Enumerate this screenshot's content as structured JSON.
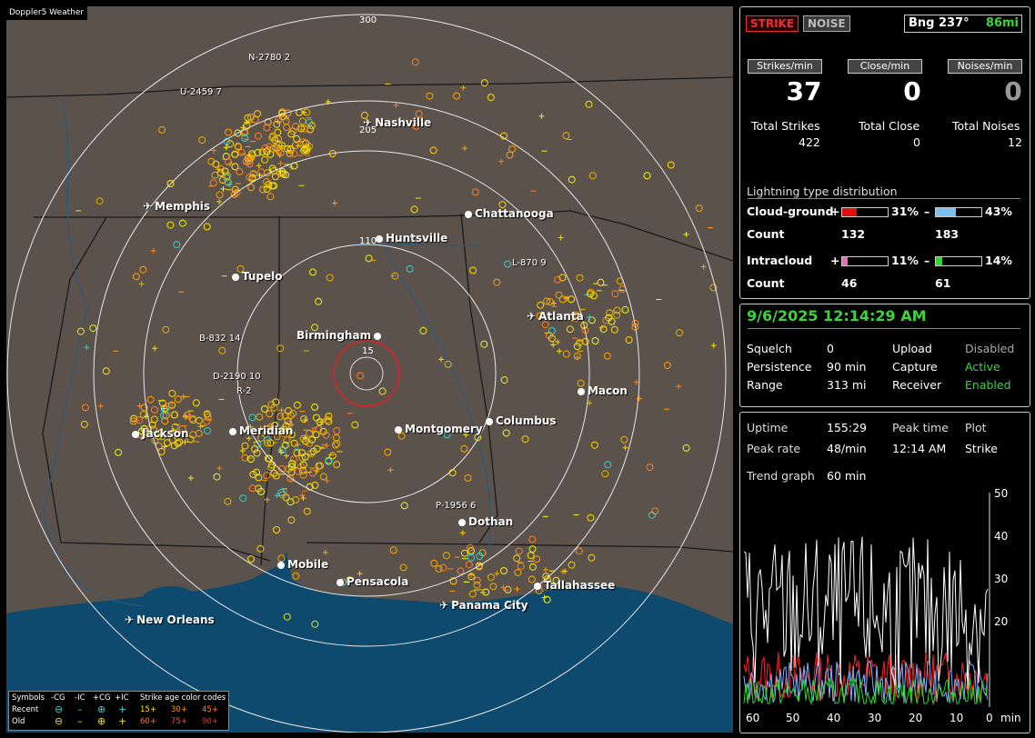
{
  "app_title": "Doppler5 Weather",
  "map": {
    "ring_labels": {
      "r300": "300",
      "r205": "205",
      "r110": "110",
      "r15": "15"
    },
    "cities": {
      "nashville": "Nashville",
      "memphis": "Memphis",
      "chattanooga": "Chattanooga",
      "huntsville": "Huntsville",
      "tupelo": "Tupelo",
      "birmingham": "Birmingham",
      "atlanta": "Atlanta",
      "macon": "Macon",
      "jackson": "Jackson",
      "meridian": "Meridian",
      "montgomery": "Montgomery",
      "columbus": "Columbus",
      "dothan": "Dothan",
      "mobile": "Mobile",
      "pensacola": "Pensacola",
      "tallahassee": "Tallahassee",
      "panama_city": "Panama City",
      "new_orleans": "New Orleans"
    },
    "cell_labels": {
      "n": "N-2780 2",
      "u": "U-2459 7",
      "l": "L-870 9",
      "b": "B-832 14",
      "d": "D-2190 10",
      "r": "R-2",
      "p": "P-1956 6"
    }
  },
  "legend": {
    "symbols": "Symbols",
    "neg_cg": "-CG",
    "neg_ic": "-IC",
    "pos_cg": "+CG",
    "pos_ic": "+IC",
    "age_title": "Strike age color codes",
    "recent": "Recent",
    "old": "Old",
    "age_recent": [
      "15+",
      "30+",
      "45+"
    ],
    "age_old": [
      "60+",
      "75+",
      "90+"
    ]
  },
  "panel_strike": {
    "strike_tab": "STRIKE",
    "noise_tab": "NOISE",
    "bearing": "Bng 237°",
    "distance": "86mi",
    "strikes_min_label": "Strikes/min",
    "close_min_label": "Close/min",
    "noises_min_label": "Noises/min",
    "strikes_min": "37",
    "close_min": "0",
    "noises_min": "0",
    "total_strikes_label": "Total Strikes",
    "total_close_label": "Total Close",
    "total_noises_label": "Total Noises",
    "total_strikes": "422",
    "total_close": "0",
    "total_noises": "12",
    "dist_title": "Lightning type distribution",
    "cg_label": "Cloud-ground",
    "ic_label": "Intracloud",
    "count_label": "Count",
    "plus": "+",
    "minus": "–",
    "cg_pos_pct": "31%",
    "cg_neg_pct": "43%",
    "ic_pos_pct": "11%",
    "ic_neg_pct": "14%",
    "cg_pos_count": "132",
    "cg_neg_count": "183",
    "ic_pos_count": "46",
    "ic_neg_count": "61",
    "cg_pos_frac": 0.31,
    "cg_neg_frac": 0.43,
    "ic_pos_frac": 0.11,
    "ic_neg_frac": 0.14
  },
  "panel_status": {
    "datetime": "9/6/2025 12:14:29 AM",
    "squelch_label": "Squelch",
    "squelch": "0",
    "persistence_label": "Persistence",
    "persistence": "90 min",
    "range_label": "Range",
    "range": "313 mi",
    "upload_label": "Upload",
    "upload": "Disabled",
    "capture_label": "Capture",
    "capture": "Active",
    "receiver_label": "Receiver",
    "receiver": "Enabled"
  },
  "panel_trend": {
    "uptime_label": "Uptime",
    "uptime": "155:29",
    "peak_time_label": "Peak time",
    "peak_time": "12:14 AM",
    "plot_label": "Plot",
    "plot": "Strike",
    "peak_rate_label": "Peak rate",
    "peak_rate": "48/min",
    "trend_label": "Trend graph",
    "trend": "60 min",
    "y_ticks": [
      "50",
      "40",
      "30",
      "20"
    ],
    "x_ticks": [
      "60",
      "50",
      "40",
      "30",
      "20",
      "10",
      "0",
      "min"
    ]
  },
  "colors": {
    "accent_green": "#3cd43c",
    "strike_red": "#e83030",
    "map_bg": "#5b524c",
    "water": "#0d4a6e"
  }
}
